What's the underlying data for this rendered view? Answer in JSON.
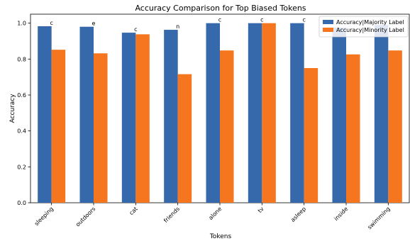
{
  "chart_data": {
    "type": "bar",
    "title": "Accuracy Comparison for Top Biased Tokens",
    "xlabel": "Tokens",
    "ylabel": "Accuracy",
    "ylim": [
      0,
      1.05
    ],
    "yticks": [
      "0.0",
      "0.2",
      "0.4",
      "0.6",
      "0.8",
      "1.0"
    ],
    "categories": [
      "sleeping",
      "outdoors",
      "cat",
      "friends",
      "alone",
      "tv",
      "asleep",
      "inside",
      "swimming"
    ],
    "bar_annotations": [
      "c",
      "e",
      "c",
      "n",
      "c",
      "c",
      "c",
      "",
      ""
    ],
    "series": [
      {
        "name": "Accuracy|Majority Label",
        "color": "#3569ac",
        "values": [
          0.983,
          0.98,
          0.947,
          0.963,
          1.0,
          1.0,
          1.0,
          0.975,
          0.99
        ]
      },
      {
        "name": "Accuracy|Minority Label",
        "color": "#f5761f",
        "values": [
          0.852,
          0.832,
          0.938,
          0.716,
          0.848,
          1.0,
          0.75,
          0.826,
          0.848
        ]
      }
    ],
    "legend_position": "top-right",
    "grid": false
  }
}
